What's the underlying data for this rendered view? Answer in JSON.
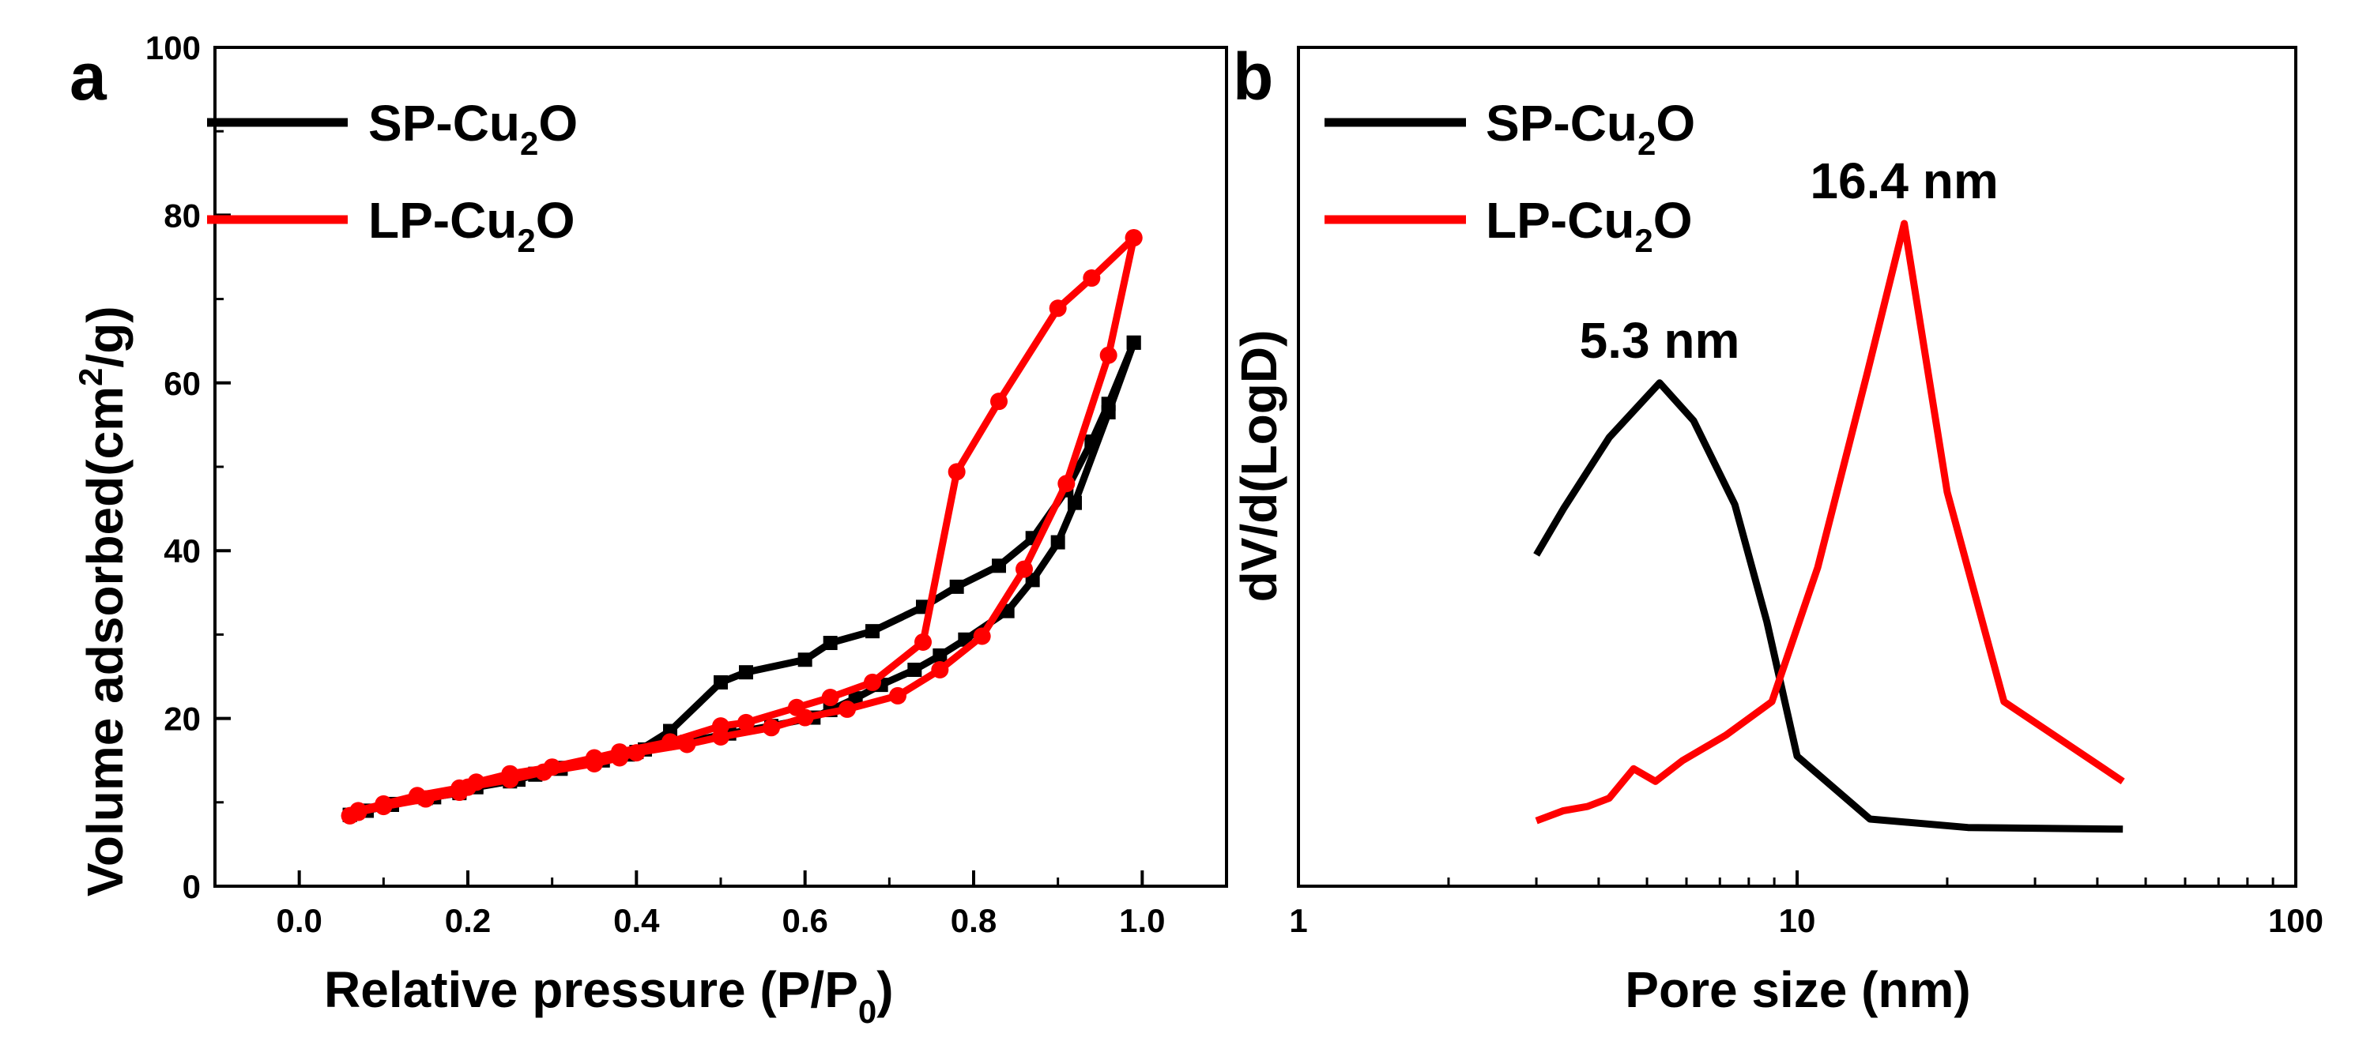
{
  "chart_data": [
    {
      "panel": "a",
      "type": "line",
      "xlabel": "Relative pressure (P/P",
      "xlabel_sub": "0",
      "xlabel_end": ")",
      "ylabel": "Volume adsorbed(cm",
      "ylabel_sup": "2",
      "ylabel_end": "/g)",
      "xlim": [
        -0.1,
        1.1
      ],
      "ylim": [
        0,
        100
      ],
      "xticks": [
        "0.0",
        "0.2",
        "0.4",
        "0.6",
        "0.8",
        "1.0"
      ],
      "yticks": [
        "0",
        "20",
        "40",
        "60",
        "80",
        "100"
      ],
      "legend_position": "top-left",
      "series": [
        {
          "name": "SP-Cu",
          "name_sub": "2",
          "name_end": "O",
          "color": "#000000",
          "marker": "square",
          "x": [
            0.06,
            0.08,
            0.11,
            0.16,
            0.19,
            0.21,
            0.26,
            0.28,
            0.31,
            0.36,
            0.39,
            0.41,
            0.46,
            0.51,
            0.56,
            0.61,
            0.63,
            0.66,
            0.69,
            0.73,
            0.76,
            0.79,
            0.84,
            0.87,
            0.9,
            0.92,
            0.96,
            0.99,
            0.99,
            0.96,
            0.94,
            0.91,
            0.87,
            0.83,
            0.78,
            0.74,
            0.68,
            0.63,
            0.6,
            0.53,
            0.5,
            0.44,
            0.4,
            0.36,
            0.31,
            0.28,
            0.25,
            0.21,
            0.19,
            0.15,
            0.11,
            0.08,
            0.06
          ],
          "y": [
            8.5,
            9,
            9.8,
            10.6,
            11.3,
            11.9,
            12.7,
            13.3,
            14.1,
            15,
            15.7,
            16.3,
            17.2,
            18.2,
            19.1,
            20.1,
            21,
            22.4,
            24,
            25.8,
            27.5,
            29.4,
            32.8,
            36.5,
            41,
            45.7,
            56.5,
            64.8,
            64.8,
            57.5,
            53,
            47.2,
            41.5,
            38.2,
            35.7,
            33.3,
            30.4,
            29,
            27,
            25.5,
            24.3,
            18.5,
            16,
            15,
            14,
            13.4,
            12.5,
            11.8,
            11.1,
            10.5,
            9.7,
            9,
            8.5
          ]
        },
        {
          "name": "LP-Cu",
          "name_sub": "2",
          "name_end": "O",
          "color": "#ff0000",
          "marker": "circle",
          "x": [
            0.06,
            0.07,
            0.1,
            0.15,
            0.19,
            0.2,
            0.25,
            0.29,
            0.35,
            0.38,
            0.4,
            0.46,
            0.5,
            0.56,
            0.6,
            0.65,
            0.71,
            0.76,
            0.81,
            0.86,
            0.91,
            0.96,
            0.99,
            0.99,
            0.94,
            0.9,
            0.83,
            0.78,
            0.74,
            0.68,
            0.63,
            0.59,
            0.53,
            0.5,
            0.44,
            0.38,
            0.35,
            0.3,
            0.25,
            0.21,
            0.19,
            0.14,
            0.1,
            0.07,
            0.06
          ],
          "y": [
            8.4,
            8.8,
            9.5,
            10.4,
            11.2,
            11.8,
            12.7,
            13.6,
            14.6,
            15.3,
            15.9,
            16.9,
            17.8,
            18.9,
            20.1,
            21.1,
            22.7,
            25.8,
            29.8,
            37.8,
            48,
            63.3,
            77.3,
            77.3,
            72.5,
            68.9,
            57.8,
            49.4,
            29.1,
            24.3,
            22.5,
            21.3,
            19.5,
            19.1,
            17.2,
            16,
            15.3,
            14.2,
            13.4,
            12.4,
            11.7,
            10.8,
            9.8,
            9,
            8.4
          ]
        }
      ]
    },
    {
      "panel": "b",
      "type": "line",
      "xscale": "log",
      "xlabel": "Pore size (nm)",
      "ylabel": "dV/d(LogD)",
      "xlim": [
        1,
        100
      ],
      "ylim": [
        0,
        1
      ],
      "xticks": [
        "1",
        "10",
        "100"
      ],
      "yticks_shown": false,
      "legend_position": "top-left",
      "series": [
        {
          "name": "SP-Cu",
          "name_sub": "2",
          "name_end": "O",
          "color": "#000000",
          "x": [
            3.0,
            3.4,
            4.2,
            5.3,
            6.2,
            7.5,
            8.7,
            10.0,
            14.0,
            22.0,
            45.0
          ],
          "y": 0.0,
          "values": [
            0.395,
            0.45,
            0.535,
            0.6,
            0.555,
            0.455,
            0.315,
            0.155,
            0.08,
            0.07,
            0.068
          ]
        },
        {
          "name": "LP-Cu",
          "name_sub": "2",
          "name_end": "O",
          "color": "#ff0000",
          "x": [
            3.0,
            3.4,
            3.8,
            4.2,
            4.7,
            5.2,
            5.9,
            7.2,
            8.9,
            11.0,
            13.8,
            16.4,
            20.0,
            26.0,
            45.0
          ],
          "values": [
            0.078,
            0.09,
            0.095,
            0.105,
            0.14,
            0.125,
            0.15,
            0.18,
            0.22,
            0.38,
            0.61,
            0.79,
            0.47,
            0.22,
            0.125
          ]
        }
      ],
      "annotations": [
        {
          "text": "5.3 nm",
          "x": 5.3,
          "value": 0.6
        },
        {
          "text": "16.4 nm",
          "x": 16.4,
          "value": 0.79
        }
      ]
    }
  ]
}
